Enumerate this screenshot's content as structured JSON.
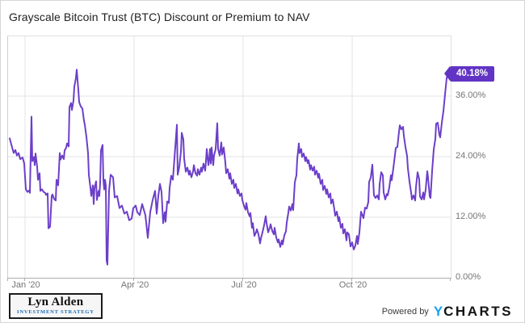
{
  "title": "Grayscale Bitcoin Trust (BTC) Discount or Premium to NAV",
  "chart_data": {
    "type": "line",
    "title": "Grayscale Bitcoin Trust (BTC) Discount or Premium to NAV",
    "x_unit": "time axis position, late Dec 2019 through late Dec 2020",
    "x_domain": [
      8,
      556
    ],
    "x_ticks": [
      {
        "label": "Jan '20",
        "x": 29
      },
      {
        "label": "Apr '20",
        "x": 164
      },
      {
        "label": "Jul '20",
        "x": 299
      },
      {
        "label": "Oct '20",
        "x": 434
      }
    ],
    "y_ticks": [
      {
        "label": "0.00%",
        "value": 0
      },
      {
        "label": "12.00%",
        "value": 12
      },
      {
        "label": "24.00%",
        "value": 24
      },
      {
        "label": "36.00%",
        "value": 36
      }
    ],
    "y_min": 0,
    "y_max": 47.8,
    "grid": true,
    "legend": "none",
    "y_axis_side": "right",
    "last_value": 40.18,
    "last_value_label": "40.18%",
    "badge_color": "#6134C4",
    "series": [
      {
        "name": "GBTC Discount or Premium to NAV (%)",
        "color": "#6C3FC9",
        "points": [
          [
            10,
            27.6
          ],
          [
            13,
            25.8
          ],
          [
            15,
            24.7
          ],
          [
            17,
            25.3
          ],
          [
            19,
            24.2
          ],
          [
            21,
            24.7
          ],
          [
            23,
            23.5
          ],
          [
            26,
            23.8
          ],
          [
            28,
            22.6
          ],
          [
            30,
            17.5
          ],
          [
            32,
            17.0
          ],
          [
            34,
            17.3
          ],
          [
            35,
            16.8
          ],
          [
            37,
            31.9
          ],
          [
            38,
            23.1
          ],
          [
            40,
            23.9
          ],
          [
            41,
            22.3
          ],
          [
            42,
            24.6
          ],
          [
            44,
            22.0
          ],
          [
            45,
            19.4
          ],
          [
            47,
            20.7
          ],
          [
            48,
            17.2
          ],
          [
            50,
            17.5
          ],
          [
            52,
            17.0
          ],
          [
            54,
            16.8
          ],
          [
            55,
            16.4
          ],
          [
            57,
            16.7
          ],
          [
            58,
            9.8
          ],
          [
            60,
            10.1
          ],
          [
            62,
            16.2
          ],
          [
            63,
            16.5
          ],
          [
            65,
            15.6
          ],
          [
            67,
            15.3
          ],
          [
            68,
            19.4
          ],
          [
            70,
            18.3
          ],
          [
            72,
            24.7
          ],
          [
            73,
            23.4
          ],
          [
            75,
            24.2
          ],
          [
            77,
            23.5
          ],
          [
            78,
            25.2
          ],
          [
            80,
            25.8
          ],
          [
            81,
            26.6
          ],
          [
            83,
            26.0
          ],
          [
            84,
            33.8
          ],
          [
            86,
            34.6
          ],
          [
            87,
            33.2
          ],
          [
            89,
            35.1
          ],
          [
            90,
            37.8
          ],
          [
            92,
            39.6
          ],
          [
            93,
            41.2
          ],
          [
            95,
            37.2
          ],
          [
            96,
            34.8
          ],
          [
            98,
            33.9
          ],
          [
            100,
            33.5
          ],
          [
            102,
            31.1
          ],
          [
            103,
            30.3
          ],
          [
            105,
            27.9
          ],
          [
            107,
            24.7
          ],
          [
            108,
            20.4
          ],
          [
            110,
            17.8
          ],
          [
            111,
            16.2
          ],
          [
            113,
            18.3
          ],
          [
            114,
            14.6
          ],
          [
            115,
            17.8
          ],
          [
            117,
            19.1
          ],
          [
            118,
            15.4
          ],
          [
            120,
            17.2
          ],
          [
            121,
            16.2
          ],
          [
            122,
            18.8
          ],
          [
            123,
            25.2
          ],
          [
            125,
            26.3
          ],
          [
            126,
            19.4
          ],
          [
            127,
            17.5
          ],
          [
            128,
            19.4
          ],
          [
            129,
            18.3
          ],
          [
            130,
            3.4
          ],
          [
            131,
            2.6
          ],
          [
            133,
            17.2
          ],
          [
            135,
            20.4
          ],
          [
            138,
            19.9
          ],
          [
            140,
            15.9
          ],
          [
            143,
            16.2
          ],
          [
            146,
            13.8
          ],
          [
            149,
            14.3
          ],
          [
            152,
            12.7
          ],
          [
            155,
            13.1
          ],
          [
            158,
            11.4
          ],
          [
            161,
            11.7
          ],
          [
            163,
            13.8
          ],
          [
            166,
            14.3
          ],
          [
            168,
            13.0
          ],
          [
            171,
            12.4
          ],
          [
            174,
            14.6
          ],
          [
            178,
            12.4
          ],
          [
            181,
            7.9
          ],
          [
            184,
            13.0
          ],
          [
            187,
            15.4
          ],
          [
            190,
            17.2
          ],
          [
            192,
            12.7
          ],
          [
            194,
            16.2
          ],
          [
            196,
            18.6
          ],
          [
            198,
            17.0
          ],
          [
            200,
            10.8
          ],
          [
            202,
            13.0
          ],
          [
            203,
            11.1
          ],
          [
            205,
            15.1
          ],
          [
            207,
            14.8
          ],
          [
            208,
            17.8
          ],
          [
            210,
            20.2
          ],
          [
            212,
            19.4
          ],
          [
            213,
            21.5
          ],
          [
            217,
            30.3
          ],
          [
            218,
            20.4
          ],
          [
            220,
            22.0
          ],
          [
            222,
            25.0
          ],
          [
            223,
            28.7
          ],
          [
            225,
            27.4
          ],
          [
            226,
            23.6
          ],
          [
            228,
            21.0
          ],
          [
            230,
            21.8
          ],
          [
            232,
            20.4
          ],
          [
            233,
            21.2
          ],
          [
            235,
            19.9
          ],
          [
            237,
            21.0
          ],
          [
            238,
            22.3
          ],
          [
            240,
            20.7
          ],
          [
            242,
            20.2
          ],
          [
            243,
            21.5
          ],
          [
            245,
            20.4
          ],
          [
            247,
            21.8
          ],
          [
            248,
            21.0
          ],
          [
            250,
            22.6
          ],
          [
            252,
            21.2
          ],
          [
            253,
            23.1
          ],
          [
            254,
            25.5
          ],
          [
            256,
            22.3
          ],
          [
            257,
            23.4
          ],
          [
            258,
            25.5
          ],
          [
            259,
            22.6
          ],
          [
            260,
            25.8
          ],
          [
            262,
            22.3
          ],
          [
            263,
            24.2
          ],
          [
            265,
            25.5
          ],
          [
            267,
            30.6
          ],
          [
            268,
            25.5
          ],
          [
            270,
            24.2
          ],
          [
            272,
            26.8
          ],
          [
            273,
            24.4
          ],
          [
            275,
            25.8
          ],
          [
            277,
            22.8
          ],
          [
            278,
            20.7
          ],
          [
            280,
            21.5
          ],
          [
            282,
            19.6
          ],
          [
            283,
            20.7
          ],
          [
            285,
            18.6
          ],
          [
            287,
            19.4
          ],
          [
            288,
            17.8
          ],
          [
            290,
            18.6
          ],
          [
            292,
            16.7
          ],
          [
            293,
            17.5
          ],
          [
            295,
            16.2
          ],
          [
            297,
            16.7
          ],
          [
            298,
            15.4
          ],
          [
            300,
            14.3
          ],
          [
            302,
            13.5
          ],
          [
            303,
            14.8
          ],
          [
            305,
            13.0
          ],
          [
            307,
            12.2
          ],
          [
            308,
            12.8
          ],
          [
            310,
            9.9
          ],
          [
            311,
            10.8
          ],
          [
            313,
            8.3
          ],
          [
            315,
            9.0
          ],
          [
            316,
            9.6
          ],
          [
            318,
            8.6
          ],
          [
            320,
            6.8
          ],
          [
            321,
            7.8
          ],
          [
            323,
            9.0
          ],
          [
            325,
            10.4
          ],
          [
            327,
            12.2
          ],
          [
            328,
            10.9
          ],
          [
            330,
            9.0
          ],
          [
            332,
            9.9
          ],
          [
            333,
            10.6
          ],
          [
            335,
            9.3
          ],
          [
            337,
            8.6
          ],
          [
            338,
            9.9
          ],
          [
            340,
            8.0
          ],
          [
            342,
            7.0
          ],
          [
            343,
            7.6
          ],
          [
            345,
            6.1
          ],
          [
            347,
            7.4
          ],
          [
            348,
            6.6
          ],
          [
            350,
            8.4
          ],
          [
            352,
            9.2
          ],
          [
            353,
            10.9
          ],
          [
            355,
            12.9
          ],
          [
            356,
            14.1
          ],
          [
            358,
            13.3
          ],
          [
            360,
            14.6
          ],
          [
            361,
            13.4
          ],
          [
            363,
            18.9
          ],
          [
            365,
            20.3
          ],
          [
            366,
            23.5
          ],
          [
            368,
            26.6
          ],
          [
            369,
            24.7
          ],
          [
            371,
            25.5
          ],
          [
            372,
            23.9
          ],
          [
            374,
            24.6
          ],
          [
            376,
            23.1
          ],
          [
            377,
            23.9
          ],
          [
            379,
            22.7
          ],
          [
            380,
            23.3
          ],
          [
            382,
            21.4
          ],
          [
            383,
            22.3
          ],
          [
            385,
            21.2
          ],
          [
            387,
            22.0
          ],
          [
            388,
            20.4
          ],
          [
            390,
            21.2
          ],
          [
            392,
            19.8
          ],
          [
            393,
            20.6
          ],
          [
            395,
            18.6
          ],
          [
            397,
            19.4
          ],
          [
            398,
            17.4
          ],
          [
            400,
            18.2
          ],
          [
            402,
            16.6
          ],
          [
            403,
            17.5
          ],
          [
            405,
            15.9
          ],
          [
            407,
            16.7
          ],
          [
            408,
            14.7
          ],
          [
            410,
            15.5
          ],
          [
            412,
            13.5
          ],
          [
            413,
            12.3
          ],
          [
            415,
            13.1
          ],
          [
            417,
            11.2
          ],
          [
            418,
            12.0
          ],
          [
            420,
            9.9
          ],
          [
            422,
            10.7
          ],
          [
            423,
            8.8
          ],
          [
            425,
            9.6
          ],
          [
            427,
            7.4
          ],
          [
            428,
            9.0
          ],
          [
            430,
            8.6
          ],
          [
            432,
            6.2
          ],
          [
            434,
            7.0
          ],
          [
            436,
            5.6
          ],
          [
            438,
            6.4
          ],
          [
            440,
            8.3
          ],
          [
            441,
            6.7
          ],
          [
            443,
            9.0
          ],
          [
            445,
            13.1
          ],
          [
            448,
            11.8
          ],
          [
            450,
            13.9
          ],
          [
            452,
            13.7
          ],
          [
            454,
            15.0
          ],
          [
            455,
            19.0
          ],
          [
            457,
            19.8
          ],
          [
            459,
            22.4
          ],
          [
            461,
            16.3
          ],
          [
            463,
            15.8
          ],
          [
            465,
            16.3
          ],
          [
            467,
            15.5
          ],
          [
            468,
            18.5
          ],
          [
            470,
            20.9
          ],
          [
            472,
            20.3
          ],
          [
            473,
            16.9
          ],
          [
            475,
            15.5
          ],
          [
            477,
            16.6
          ],
          [
            478,
            16.3
          ],
          [
            480,
            17.9
          ],
          [
            482,
            20.3
          ],
          [
            483,
            19.3
          ],
          [
            485,
            21.7
          ],
          [
            487,
            24.3
          ],
          [
            488,
            25.7
          ],
          [
            490,
            25.9
          ],
          [
            492,
            28.9
          ],
          [
            493,
            30.2
          ],
          [
            495,
            29.4
          ],
          [
            497,
            29.9
          ],
          [
            498,
            28.1
          ],
          [
            500,
            25.9
          ],
          [
            502,
            24.1
          ],
          [
            503,
            21.7
          ],
          [
            505,
            19.0
          ],
          [
            507,
            16.9
          ],
          [
            508,
            15.5
          ],
          [
            510,
            16.3
          ],
          [
            512,
            15.3
          ],
          [
            513,
            17.9
          ],
          [
            515,
            20.9
          ],
          [
            517,
            19.5
          ],
          [
            518,
            16.1
          ],
          [
            520,
            15.5
          ],
          [
            522,
            16.9
          ],
          [
            523,
            15.5
          ],
          [
            525,
            17.4
          ],
          [
            527,
            21.1
          ],
          [
            528,
            19.8
          ],
          [
            530,
            16.1
          ],
          [
            531,
            15.8
          ],
          [
            533,
            21.1
          ],
          [
            535,
            25.4
          ],
          [
            537,
            27.5
          ],
          [
            538,
            30.5
          ],
          [
            540,
            30.7
          ],
          [
            542,
            28.3
          ],
          [
            543,
            27.8
          ],
          [
            545,
            30.7
          ],
          [
            547,
            33.0
          ],
          [
            549,
            36.3
          ],
          [
            551,
            39.5
          ],
          [
            552,
            40.3
          ],
          [
            554,
            40.0
          ],
          [
            556,
            40.18
          ]
        ]
      }
    ]
  },
  "footer": {
    "logo_title": "Lyn Alden",
    "logo_subtitle": "INVESTMENT STRATEGY",
    "logo_subtitle_color": "#1b6cb5",
    "powered_by": "Powered by",
    "ycharts_y": "Y",
    "ycharts_rest": "CHARTS",
    "ycharts_blue": "#18A0F4"
  }
}
